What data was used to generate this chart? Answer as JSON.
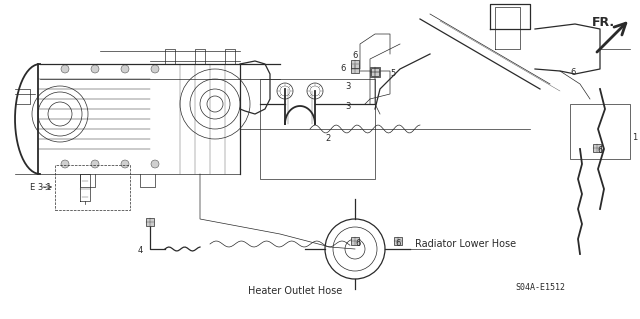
{
  "bg_color": "#ffffff",
  "line_color": "#2a2a2a",
  "part_number": "S04A-E1512",
  "labels": {
    "radiator_lower_hose": "Radiator Lower Hose",
    "heater_outlet_hose": "Heater Outlet Hose",
    "fr_label": "FR.",
    "e31_label": "E 3-1"
  },
  "figsize": [
    6.4,
    3.19
  ],
  "dpi": 100
}
